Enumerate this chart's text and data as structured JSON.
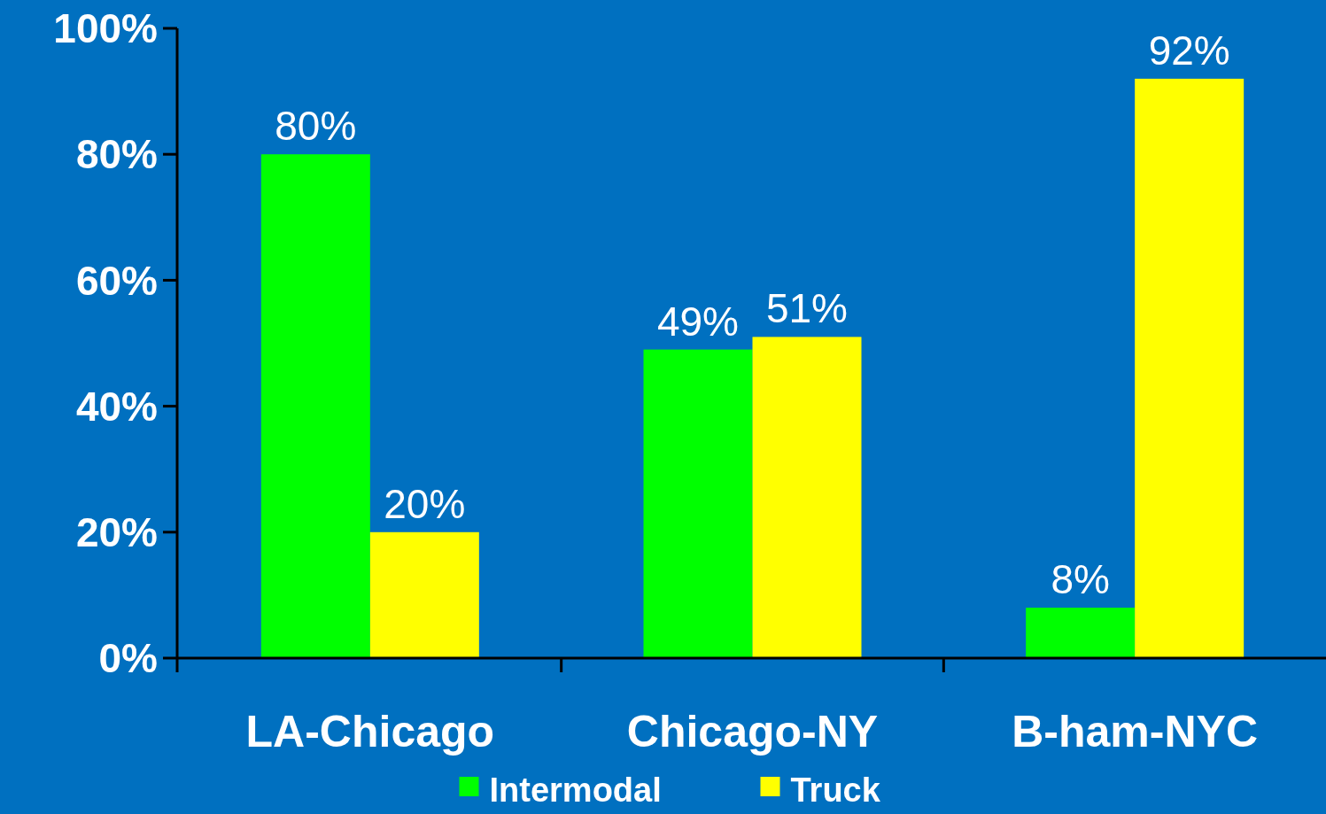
{
  "chart_data": {
    "type": "bar",
    "categories": [
      "LA-Chicago",
      "Chicago-NY",
      "B-ham-NYC"
    ],
    "series": [
      {
        "name": "Intermodal",
        "color": "#00ff00",
        "values": [
          80,
          49,
          8
        ],
        "value_labels": [
          "80%",
          "49%",
          "8%"
        ]
      },
      {
        "name": "Truck",
        "color": "#ffff00",
        "values": [
          20,
          51,
          92
        ],
        "value_labels": [
          "20%",
          "51%",
          "92%"
        ]
      }
    ],
    "ylim": [
      0,
      100
    ],
    "yticks": [
      {
        "value": 0,
        "label": "0%"
      },
      {
        "value": 20,
        "label": "20%"
      },
      {
        "value": 40,
        "label": "40%"
      },
      {
        "value": 60,
        "label": "60%"
      },
      {
        "value": 80,
        "label": "80%"
      },
      {
        "value": 100,
        "label": "100%"
      }
    ],
    "grid": false,
    "legend": "bottom"
  }
}
